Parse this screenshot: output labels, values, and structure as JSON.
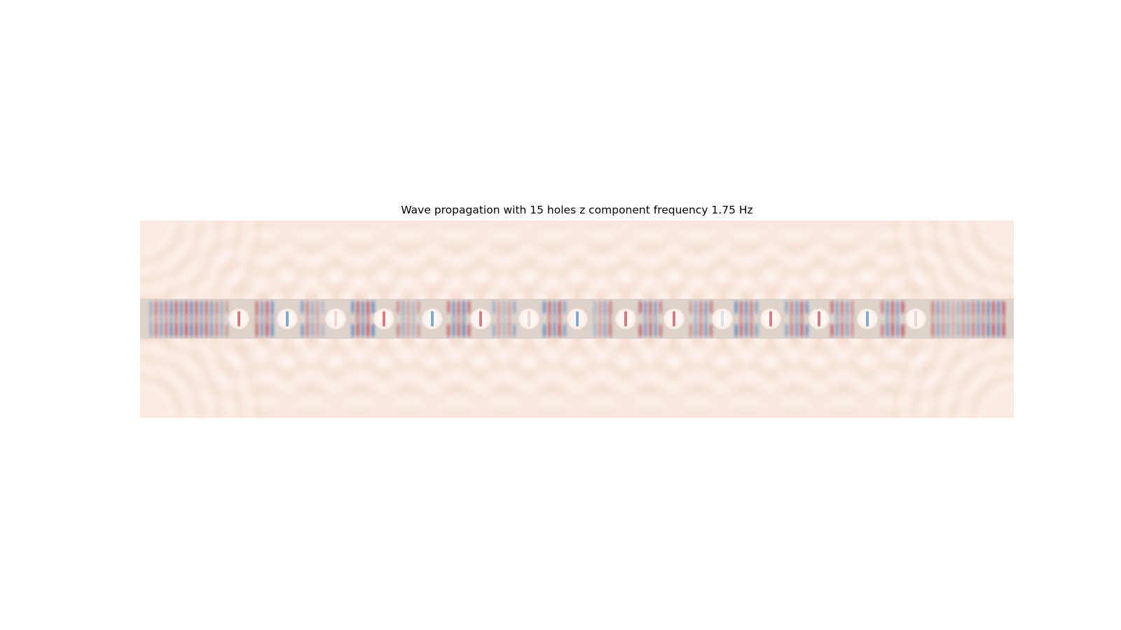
{
  "figure": {
    "title": "Wave propagation with 15 holes z component frequency 1.75 Hz"
  },
  "field_image": {
    "hole_count": 15,
    "background_color": "#f9ebe4",
    "waveguide_color": "#ddd3cd",
    "positive_color": "#b2182b",
    "negative_color": "#2166ac",
    "hole_color": "#fbf4f0"
  }
}
